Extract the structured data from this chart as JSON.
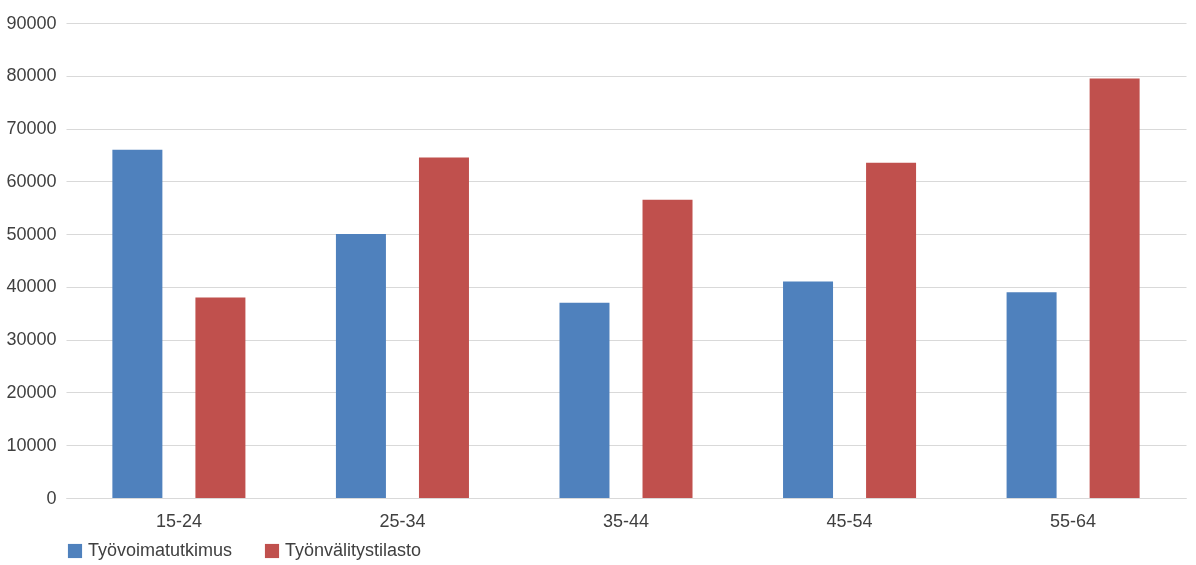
{
  "chart_data": {
    "type": "bar",
    "categories": [
      "15-24",
      "25-34",
      "35-44",
      "45-54",
      "55-64"
    ],
    "series": [
      {
        "name": "Työvoimatutkimus",
        "color": "#4f81bd",
        "values": [
          66000,
          50000,
          37000,
          41000,
          39000
        ]
      },
      {
        "name": "Työnvälitystilasto",
        "color": "#c0504d",
        "values": [
          38000,
          64500,
          56500,
          63500,
          79500
        ]
      }
    ],
    "ylim": [
      0,
      90000
    ],
    "yticks": [
      0,
      10000,
      20000,
      30000,
      40000,
      50000,
      60000,
      70000,
      80000,
      90000
    ],
    "grid": "y",
    "legend": "bottom"
  }
}
